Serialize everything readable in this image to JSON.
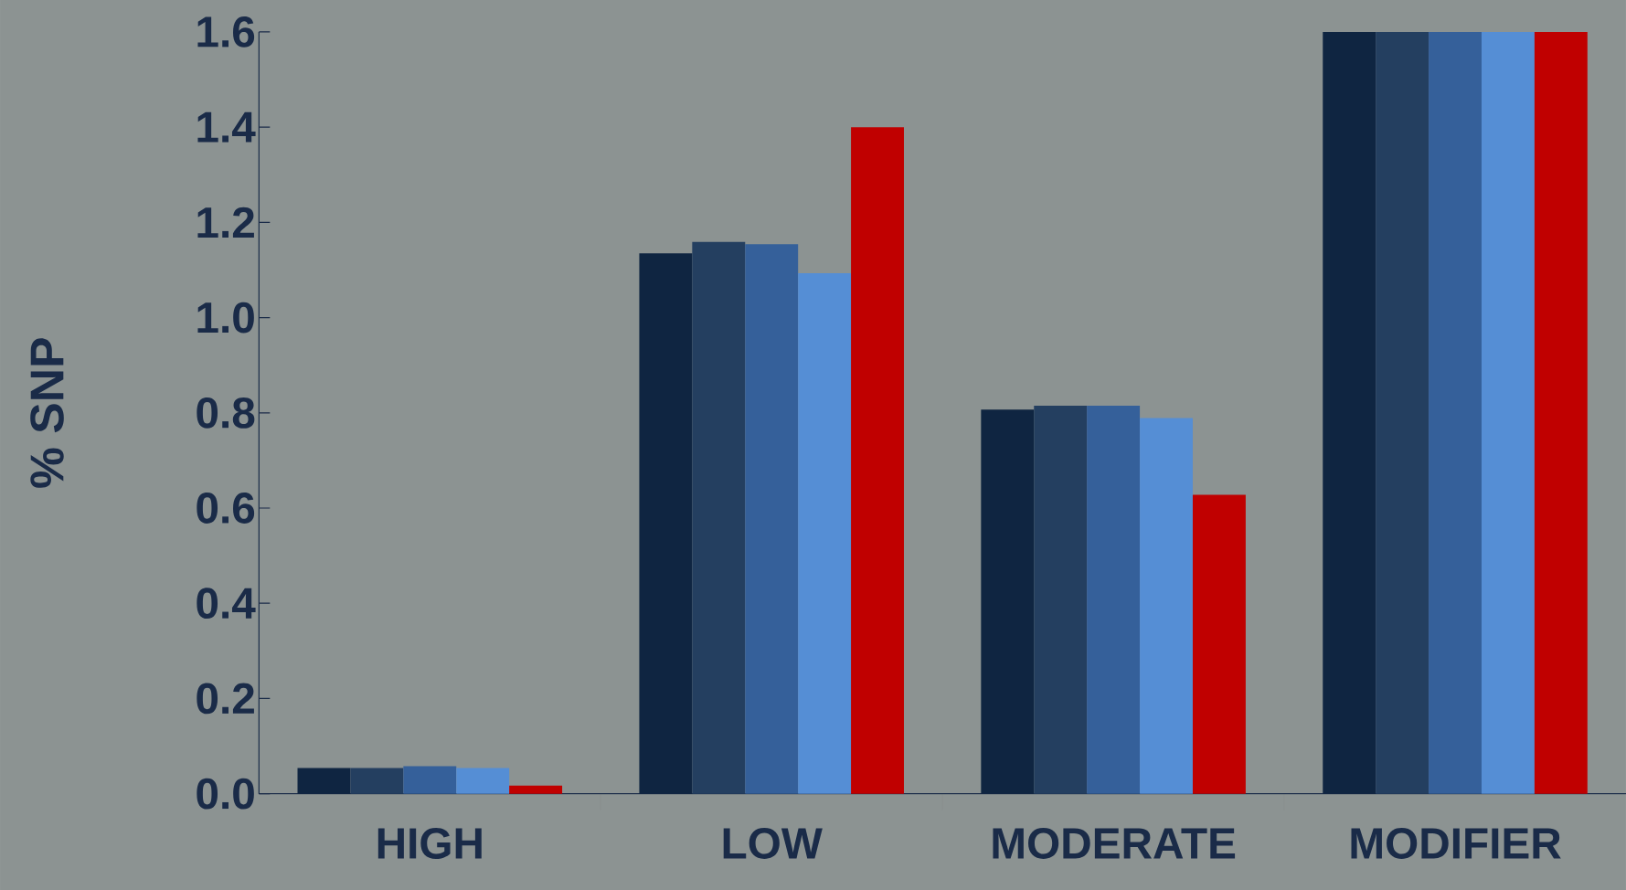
{
  "chart_data": {
    "type": "bar",
    "ylabel": "% SNP",
    "categories": [
      "HIGH",
      "LOW",
      "MODERATE",
      "MODIFIER"
    ],
    "series": [
      {
        "color": "#0f2541",
        "values": [
          0.054,
          1.135,
          0.807,
          1.6
        ]
      },
      {
        "color": "#243f60",
        "values": [
          0.054,
          1.159,
          0.815,
          1.6
        ]
      },
      {
        "color": "#35609a",
        "values": [
          0.058,
          1.154,
          0.815,
          1.6
        ]
      },
      {
        "color": "#558ed5",
        "values": [
          0.054,
          1.093,
          0.789,
          1.6
        ]
      },
      {
        "color": "#c00000",
        "values": [
          0.017,
          1.4,
          0.628,
          1.6
        ]
      }
    ],
    "ylim": [
      0,
      1.6
    ],
    "yticks": [
      {
        "value": 0,
        "label": "0.0"
      },
      0.2,
      0.4,
      0.6,
      0.8,
      {
        "value": 1.0,
        "label": "1.0"
      },
      1.2,
      1.4,
      1.6
    ],
    "grid": false
  }
}
